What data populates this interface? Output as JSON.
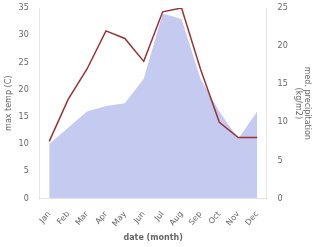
{
  "chart_data": {
    "type": "line",
    "xlabel": "date (month)",
    "ylabel": "max temp (C)",
    "y2label": "med. precipitation\n(kg/m2)",
    "categories": [
      "Jan",
      "Feb",
      "Mar",
      "Apr",
      "May",
      "Jun",
      "Jul",
      "Aug",
      "Sep",
      "Oct",
      "Nov",
      "Dec"
    ],
    "series": [
      {
        "type": "area",
        "color": "#c5caf0",
        "values": [
          10,
          13,
          16,
          17,
          17.5,
          22,
          34,
          33,
          22,
          16,
          11,
          16
        ]
      },
      {
        "type": "line",
        "color": "#993333",
        "axis": "y2",
        "values": [
          7.5,
          13,
          17,
          22,
          21,
          18,
          24.5,
          25,
          17,
          10,
          8,
          8
        ]
      }
    ],
    "ylim": [
      0,
      35
    ],
    "yticks": [
      0,
      5,
      10,
      15,
      20,
      25,
      30,
      35
    ],
    "y2lim": [
      0,
      25
    ],
    "y2ticks": [
      0,
      5,
      10,
      15,
      20,
      25
    ],
    "grid": false
  }
}
